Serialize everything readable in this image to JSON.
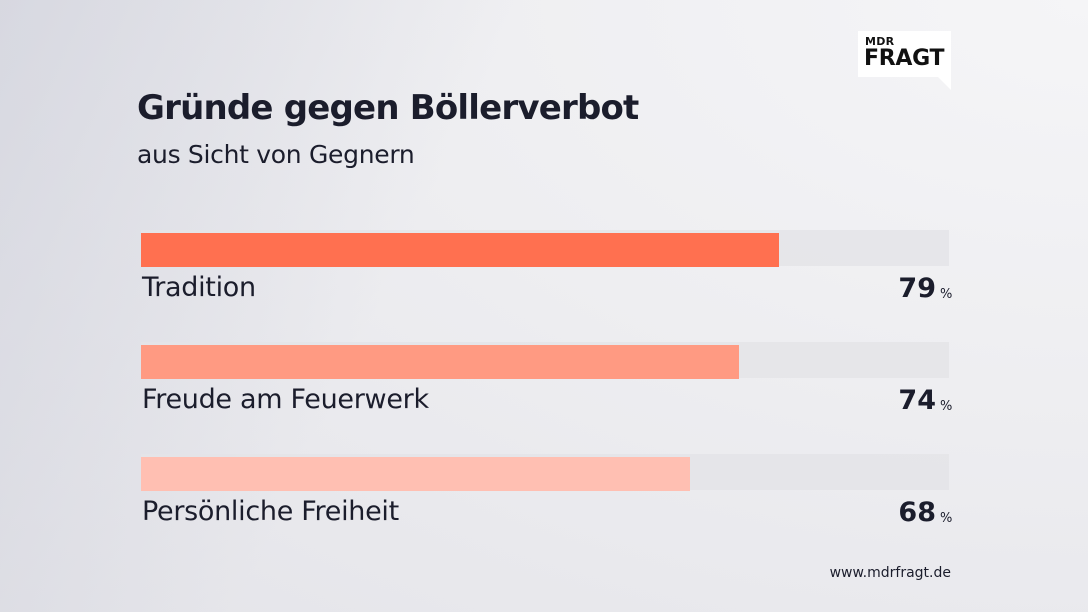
{
  "logo": {
    "top": "MDR",
    "bottom": "FRAGT"
  },
  "source": "www.mdrfragt.de",
  "chart_data": {
    "type": "bar",
    "orientation": "horizontal",
    "title": "Gründe gegen Böllerverbot",
    "subtitle": "aus Sicht von Gegnern",
    "unit": "%",
    "xlim": [
      0,
      100
    ],
    "grid": false,
    "categories": [
      "Tradition",
      "Freude am Feuerwerk",
      "Persönliche Freiheit"
    ],
    "values": [
      79,
      74,
      68
    ],
    "colors": [
      "#ff7050",
      "#ff9a82",
      "#ffbfb2"
    ]
  }
}
